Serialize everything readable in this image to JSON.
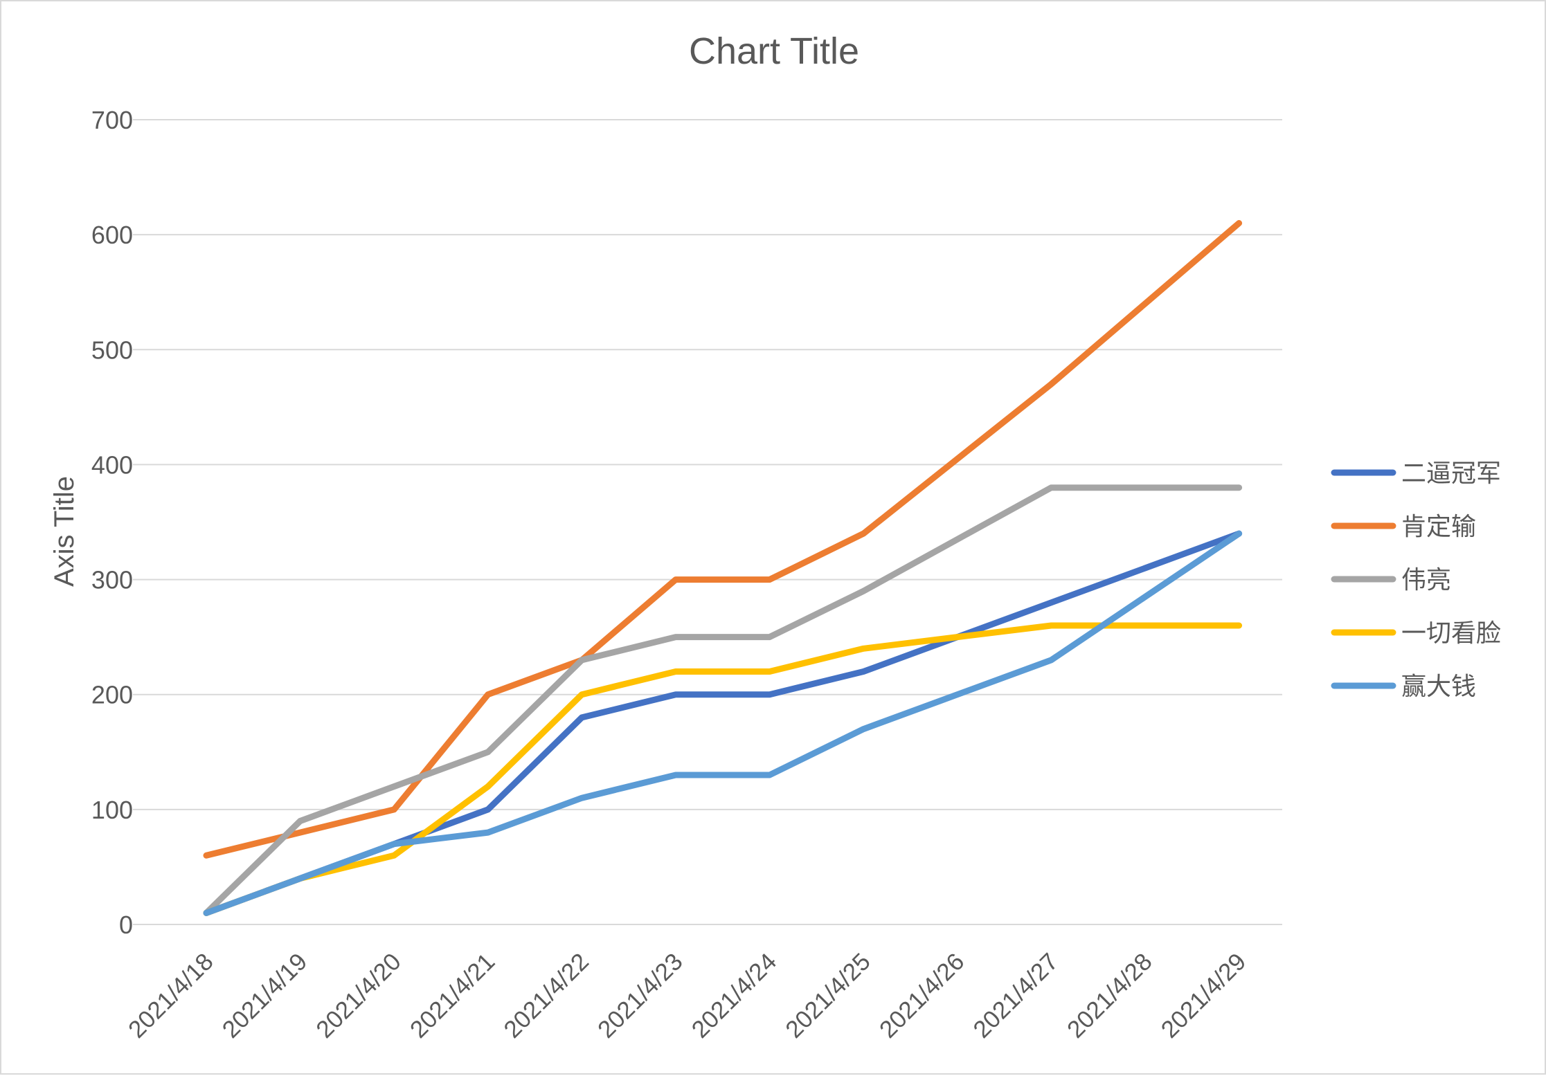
{
  "chart_data": {
    "type": "line",
    "title": "Chart Title",
    "xlabel": "",
    "ylabel": "Axis Title",
    "ylim": [
      0,
      700
    ],
    "y_ticks": [
      0,
      100,
      200,
      300,
      400,
      500,
      600,
      700
    ],
    "grid": true,
    "legend_position": "right",
    "categories": [
      "2021/4/18",
      "2021/4/19",
      "2021/4/20",
      "2021/4/21",
      "2021/4/22",
      "2021/4/23",
      "2021/4/24",
      "2021/4/25",
      "2021/4/26",
      "2021/4/27",
      "2021/4/28",
      "2021/4/29"
    ],
    "series": [
      {
        "name": "二逼冠军",
        "color": "#4472C4",
        "values": [
          10,
          40,
          70,
          100,
          180,
          200,
          200,
          220,
          250,
          280,
          310,
          340
        ]
      },
      {
        "name": "肯定输",
        "color": "#ED7D31",
        "values": [
          60,
          80,
          100,
          200,
          230,
          300,
          300,
          340,
          405,
          470,
          540,
          610
        ]
      },
      {
        "name": "伟亮",
        "color": "#A5A5A5",
        "values": [
          10,
          90,
          120,
          150,
          230,
          250,
          250,
          290,
          335,
          380,
          380,
          380
        ]
      },
      {
        "name": "一切看脸",
        "color": "#FFC000",
        "values": [
          10,
          40,
          60,
          120,
          200,
          220,
          220,
          240,
          250,
          260,
          260,
          260
        ]
      },
      {
        "name": "赢大钱",
        "color": "#5B9BD5",
        "values": [
          10,
          40,
          70,
          80,
          110,
          130,
          130,
          170,
          200,
          230,
          285,
          340
        ]
      }
    ]
  }
}
